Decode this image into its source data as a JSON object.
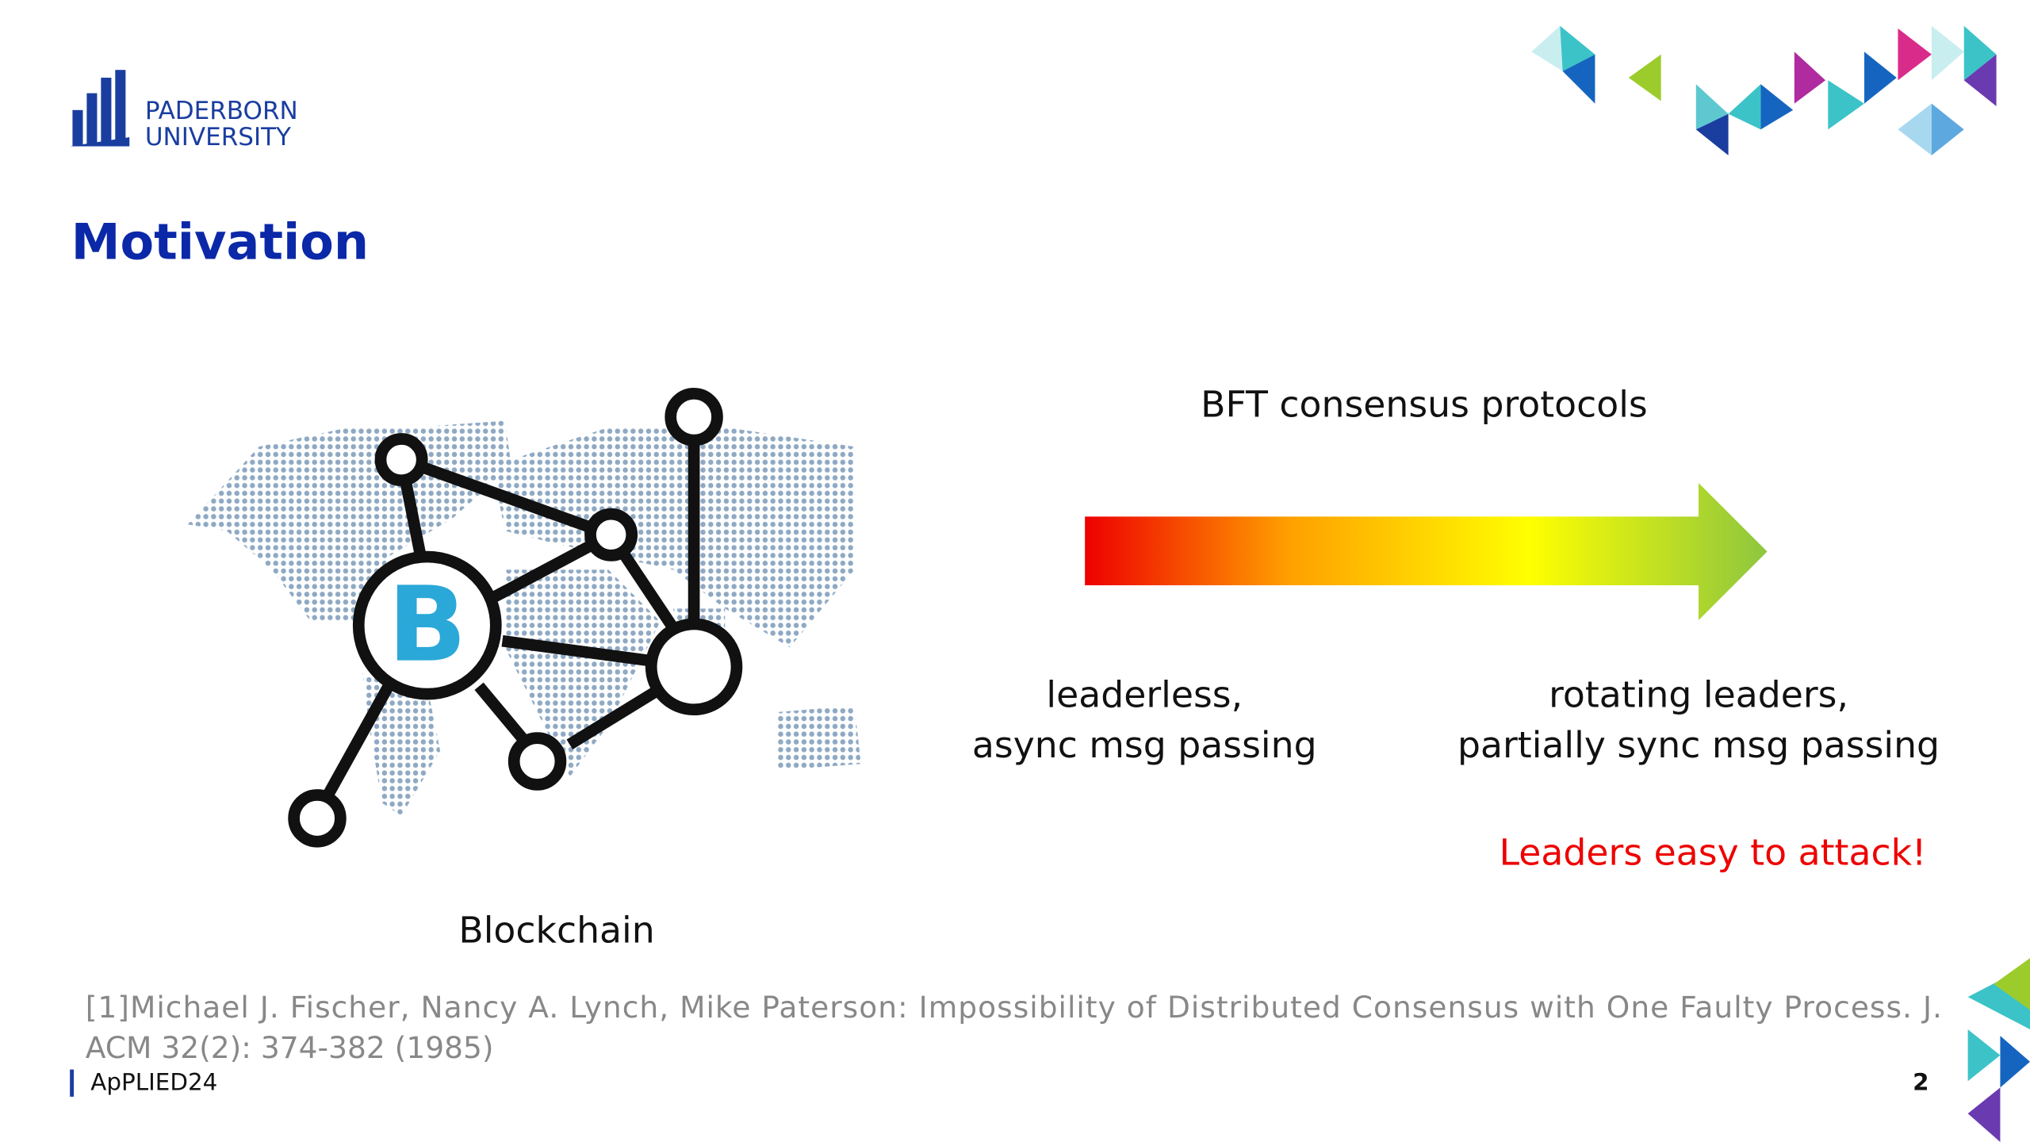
{
  "header": {
    "university": [
      "PADERBORN",
      "UNIVERSITY"
    ],
    "title": "Motivation"
  },
  "figure": {
    "caption": "Blockchain"
  },
  "arrow": {
    "label": "BFT consensus protocols",
    "left": [
      "leaderless,",
      "async msg passing"
    ],
    "right": [
      "rotating leaders,",
      "partially sync msg passing"
    ],
    "warning": "Leaders easy to attack!"
  },
  "reference": [
    "[1]Michael J. Fischer, Nancy A. Lynch, Mike Paterson: Impossibility of Distributed Consensus with One Faulty Process. J.",
    "ACM 32(2): 374-382 (1985)"
  ],
  "footer": {
    "event": "ApPLIED24",
    "page": "2"
  }
}
